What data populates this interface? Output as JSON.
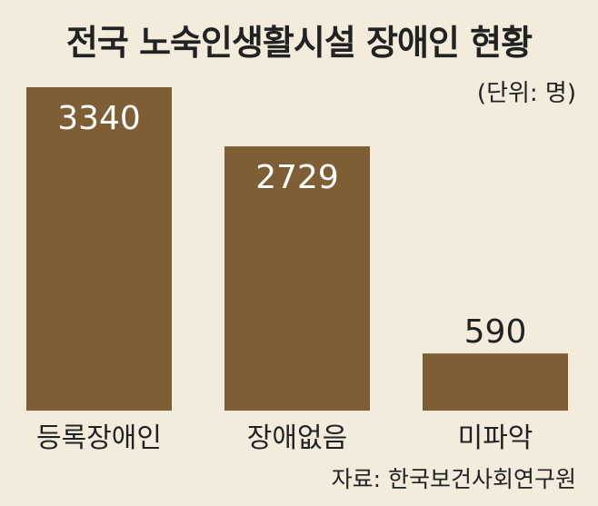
{
  "chart_data": {
    "type": "bar",
    "title": "전국 노숙인생활시설 장애인 현황",
    "unit_label": "(단위: 명)",
    "categories": [
      "등록장애인",
      "장애없음",
      "미파악"
    ],
    "values": [
      3340,
      2729,
      590
    ],
    "ylim": [
      0,
      3340
    ],
    "grid": false,
    "colors": {
      "bar": "#7e5f35",
      "background": "#f3ecdc",
      "label_inside": "#ffffff",
      "label_outside": "#222222"
    },
    "source": "자료: 한국보건사회연구원"
  }
}
